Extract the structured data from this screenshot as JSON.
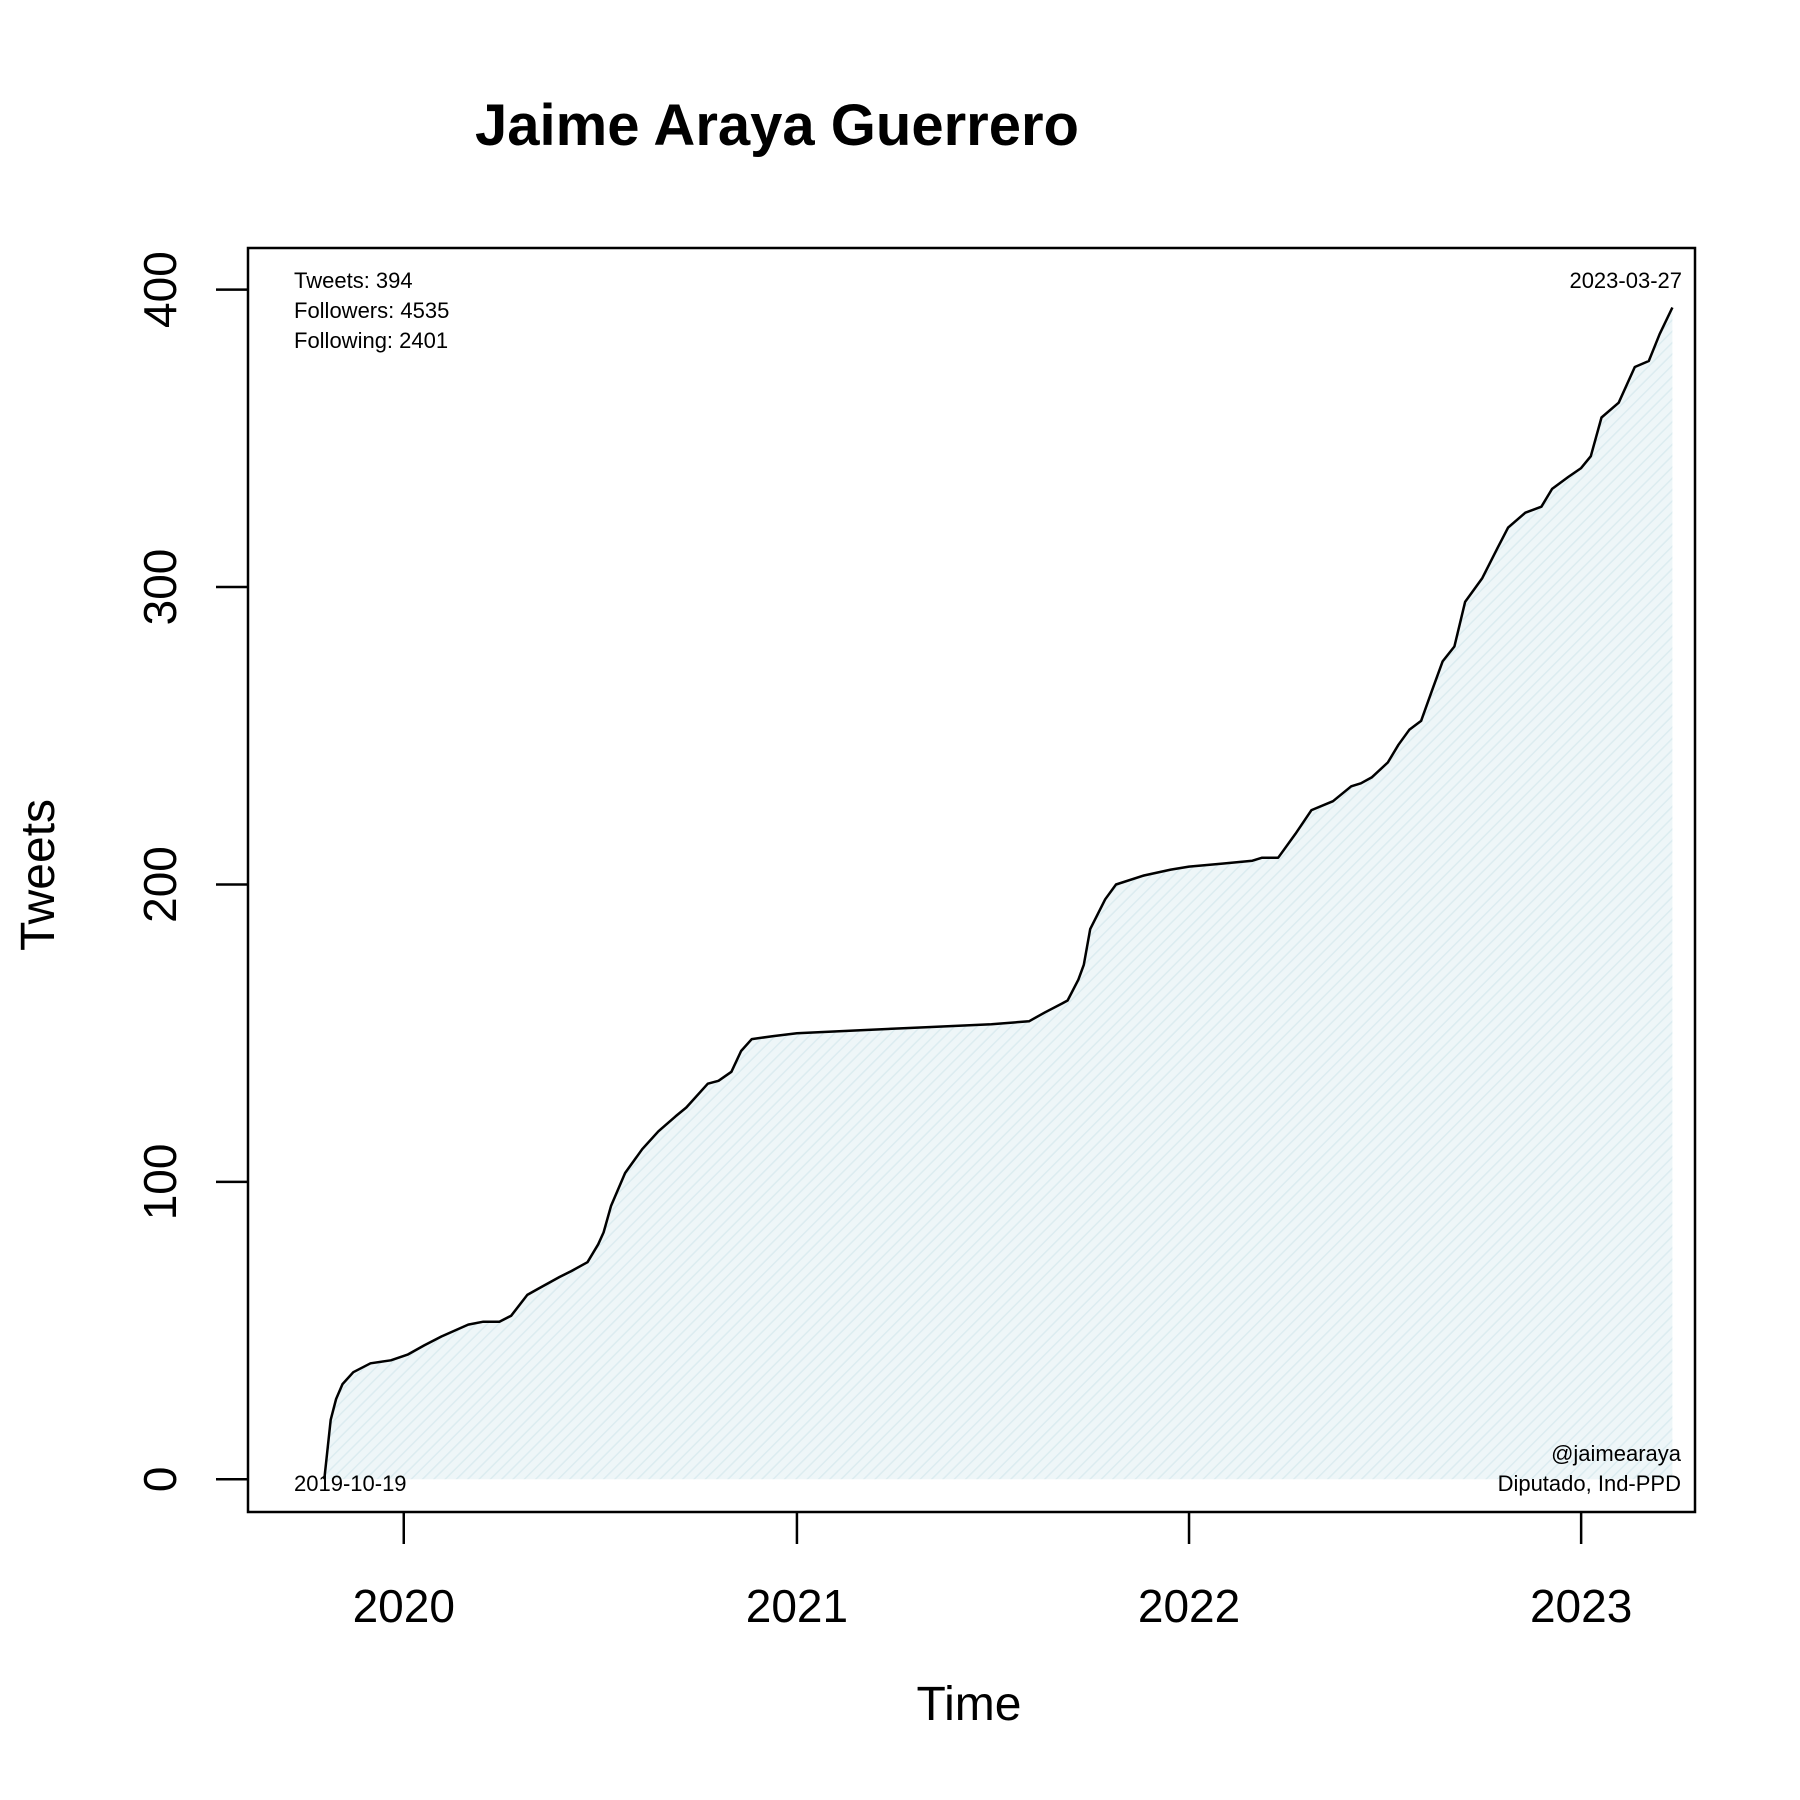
{
  "chart_data": {
    "type": "area",
    "title": "Jaime Araya Guerrero",
    "xlabel": "Time",
    "ylabel": "Tweets",
    "xlim": [
      "2019-08-09",
      "2023-04-17"
    ],
    "ylim": [
      -11,
      414
    ],
    "x_ticks": [
      "2020-01-01",
      "2021-01-01",
      "2022-01-01",
      "2023-01-01"
    ],
    "x_tick_labels": [
      "2020",
      "2021",
      "2022",
      "2023"
    ],
    "y_ticks": [
      0,
      100,
      200,
      300,
      400
    ],
    "y_tick_labels": [
      "0",
      "100",
      "200",
      "300",
      "400"
    ],
    "grid": false,
    "line_color": "#000000",
    "fill_color": "#e3f0f3",
    "series": [
      {
        "x": [
          "2019-10-19",
          "2019-10-22",
          "2019-10-25",
          "2019-10-30",
          "2019-11-05",
          "2019-11-15",
          "2019-12-01",
          "2019-12-20",
          "2020-01-05",
          "2020-01-20",
          "2020-02-05",
          "2020-03-01",
          "2020-03-15",
          "2020-03-30",
          "2020-04-10",
          "2020-04-25",
          "2020-05-05",
          "2020-05-25",
          "2020-06-05",
          "2020-06-20",
          "2020-06-30",
          "2020-07-05",
          "2020-07-12",
          "2020-07-25",
          "2020-08-10",
          "2020-08-25",
          "2020-09-10",
          "2020-09-20",
          "2020-10-10",
          "2020-10-20",
          "2020-11-01",
          "2020-11-10",
          "2020-11-20",
          "2020-12-10",
          "2021-01-01",
          "2021-03-01",
          "2021-05-01",
          "2021-07-01",
          "2021-08-05",
          "2021-08-20",
          "2021-09-05",
          "2021-09-10",
          "2021-09-20",
          "2021-09-25",
          "2021-10-01",
          "2021-10-15",
          "2021-10-25",
          "2021-11-20",
          "2021-12-15",
          "2022-01-01",
          "2022-02-01",
          "2022-03-01",
          "2022-03-10",
          "2022-03-25",
          "2022-04-10",
          "2022-04-25",
          "2022-05-15",
          "2022-06-01",
          "2022-06-10",
          "2022-06-20",
          "2022-07-05",
          "2022-07-15",
          "2022-07-25",
          "2022-08-05",
          "2022-08-15",
          "2022-08-25",
          "2022-09-05",
          "2022-09-15",
          "2022-10-01",
          "2022-10-15",
          "2022-10-25",
          "2022-11-10",
          "2022-11-25",
          "2022-12-05",
          "2022-12-20",
          "2023-01-01",
          "2023-01-10",
          "2023-01-20",
          "2023-02-05",
          "2023-02-20",
          "2023-03-05",
          "2023-03-15",
          "2023-03-27"
        ],
        "y": [
          0,
          10,
          20,
          27,
          32,
          36,
          39,
          40,
          42,
          45,
          48,
          52,
          53,
          53,
          55,
          62,
          64,
          68,
          70,
          73,
          79,
          83,
          92,
          103,
          111,
          117,
          122,
          125,
          133,
          134,
          137,
          144,
          148,
          149,
          150,
          151,
          152,
          153,
          154,
          157,
          160,
          161,
          168,
          173,
          185,
          195,
          200,
          203,
          205,
          206,
          207,
          208,
          209,
          209,
          217,
          225,
          228,
          233,
          234,
          236,
          241,
          247,
          252,
          255,
          265,
          275,
          280,
          295,
          303,
          313,
          320,
          325,
          327,
          333,
          337,
          340,
          344,
          357,
          362,
          374,
          376,
          385,
          394
        ]
      }
    ]
  },
  "annotations": {
    "stats_lines": [
      "Tweets: 394",
      "Followers: 4535",
      "Following: 2401"
    ],
    "start_date": "2019-10-19",
    "end_date": "2023-03-27",
    "handle": "@jaimearaya",
    "role": "Diputado, Ind-PPD"
  }
}
